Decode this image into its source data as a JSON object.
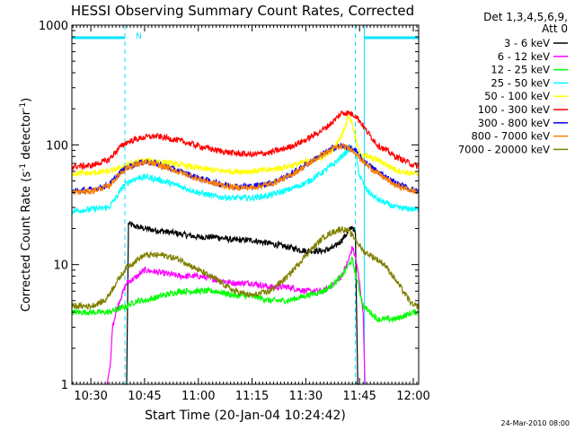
{
  "chart_data": {
    "type": "line",
    "title": "HESSI Observing Summary Count Rates, Corrected",
    "xlabel": "Start Time (20-Jan-04 10:24:42)",
    "ylabel_main": "Corrected Count Rate (s",
    "ylabel_sup1": "-1",
    "ylabel_mid": " detector",
    "ylabel_sup2": "-1",
    "ylabel_end": ")",
    "yscale": "log",
    "ylim": [
      1,
      1000
    ],
    "xlim": [
      "10:24:42",
      "12:01:30"
    ],
    "grid": false,
    "legend_placement": "right",
    "legend_header": [
      "Det 1,3,4,5,6,9,",
      "Att 0"
    ],
    "footer_date": "24-Mar-2010 08:00",
    "night_marker": "N",
    "x_ticks": [
      {
        "time": "10:30",
        "label": "10:30"
      },
      {
        "time": "10:45",
        "label": "10:45"
      },
      {
        "time": "11:00",
        "label": "11:00"
      },
      {
        "time": "11:15",
        "label": "11:15"
      },
      {
        "time": "11:30",
        "label": "11:30"
      },
      {
        "time": "11:45",
        "label": "11:45"
      },
      {
        "time": "12:00",
        "label": "12:00"
      }
    ],
    "y_ticks": [
      {
        "value": 1,
        "label": "1"
      },
      {
        "value": 10,
        "label": "10"
      },
      {
        "value": 100,
        "label": "100"
      },
      {
        "value": 1000,
        "label": "1000"
      }
    ],
    "night_intervals": [
      {
        "start": "10:24:42",
        "end": "10:39:30"
      },
      {
        "start": "11:46:20",
        "end": "12:01:30"
      }
    ],
    "saa_boundaries": [
      "10:24:42",
      "10:39:30",
      "11:43:50",
      "11:46:20",
      "12:01:30"
    ],
    "series": [
      {
        "name": "3 - 6 keV",
        "color": "#000000",
        "x": [
          "10:39:30",
          "10:40:00",
          "10:40:30",
          "10:42",
          "10:45",
          "10:50",
          "10:55",
          "11:00",
          "11:05",
          "11:10",
          "11:15",
          "11:20",
          "11:25",
          "11:30",
          "11:35",
          "11:38",
          "11:40",
          "11:42",
          "11:43",
          "11:43:50",
          "11:44:30",
          "11:45"
        ],
        "y": [
          1,
          1,
          22,
          21,
          20,
          19,
          18,
          17,
          17,
          16,
          16,
          15,
          14,
          13,
          13,
          14,
          16,
          19,
          21,
          18,
          1,
          1
        ]
      },
      {
        "name": "6 - 12 keV",
        "color": "#ff00ff",
        "x": [
          "10:34:30",
          "10:35:30",
          "10:36",
          "10:37",
          "10:38",
          "10:40",
          "10:43",
          "10:45",
          "10:50",
          "10:55",
          "11:00",
          "11:05",
          "11:10",
          "11:15",
          "11:20",
          "11:25",
          "11:30",
          "11:35",
          "11:38",
          "11:40",
          "11:42",
          "11:43",
          "11:44",
          "11:45",
          "11:46",
          "11:46:30"
        ],
        "y": [
          1,
          1.5,
          3,
          4,
          5,
          7,
          8,
          9,
          8.5,
          8,
          8,
          7.5,
          7,
          7,
          6.5,
          6.5,
          6,
          6,
          7,
          8,
          11,
          14,
          11,
          7,
          4,
          1
        ]
      },
      {
        "name": "12 - 25 keV",
        "color": "#00ff00",
        "x": [
          "10:24:42",
          "10:30",
          "10:35",
          "10:40",
          "10:43",
          "10:45",
          "10:50",
          "10:55",
          "11:00",
          "11:05",
          "11:10",
          "11:15",
          "11:20",
          "11:25",
          "11:30",
          "11:35",
          "11:38",
          "11:40",
          "11:42",
          "11:43",
          "11:44",
          "11:45",
          "11:46",
          "11:48",
          "11:50",
          "11:55",
          "12:00",
          "12:01:30"
        ],
        "y": [
          4,
          4,
          4,
          4.5,
          5,
          5,
          5.5,
          6,
          6,
          6,
          5.5,
          5.5,
          5,
          5,
          5.5,
          6,
          7,
          8,
          10,
          11,
          8,
          6,
          4.5,
          4,
          3.5,
          3.5,
          4,
          4
        ]
      },
      {
        "name": "25 - 50 keV",
        "color": "#00ffff",
        "x": [
          "10:24:42",
          "10:30",
          "10:35",
          "10:37",
          "10:39",
          "10:41",
          "10:43",
          "10:45",
          "10:48",
          "10:50",
          "10:55",
          "11:00",
          "11:05",
          "11:10",
          "11:15",
          "11:20",
          "11:25",
          "11:30",
          "11:35",
          "11:38",
          "11:40",
          "11:42",
          "11:43",
          "11:44",
          "11:45",
          "11:47",
          "11:50",
          "11:55",
          "12:00",
          "12:01:30"
        ],
        "y": [
          28,
          29,
          30,
          36,
          45,
          50,
          53,
          54,
          52,
          50,
          45,
          40,
          37,
          36,
          36,
          38,
          42,
          48,
          60,
          70,
          80,
          92,
          95,
          80,
          55,
          42,
          35,
          30,
          29,
          29
        ]
      },
      {
        "name": "50 - 100 keV",
        "color": "#ffff00",
        "x": [
          "10:24:42",
          "10:30",
          "10:35",
          "10:38",
          "10:40",
          "10:43",
          "10:45",
          "10:48",
          "10:50",
          "10:55",
          "11:00",
          "11:05",
          "11:10",
          "11:15",
          "11:20",
          "11:25",
          "11:30",
          "11:35",
          "11:38",
          "11:40",
          "11:42",
          "11:43",
          "11:44",
          "11:45",
          "11:47",
          "11:50",
          "11:55",
          "12:00",
          "12:01:30"
        ],
        "y": [
          58,
          58,
          60,
          64,
          68,
          72,
          74,
          73,
          72,
          68,
          64,
          61,
          60,
          60,
          62,
          66,
          72,
          80,
          95,
          120,
          175,
          150,
          110,
          85,
          80,
          75,
          62,
          57,
          57
        ]
      },
      {
        "name": "100 - 300 keV",
        "color": "#ff0000",
        "x": [
          "10:24:42",
          "10:30",
          "10:35",
          "10:38",
          "10:40",
          "10:43",
          "10:45",
          "10:48",
          "10:50",
          "10:55",
          "11:00",
          "11:05",
          "11:10",
          "11:15",
          "11:20",
          "11:25",
          "11:30",
          "11:35",
          "11:38",
          "11:40",
          "11:42",
          "11:43",
          "11:44",
          "11:45",
          "11:47",
          "11:50",
          "11:55",
          "12:00",
          "12:01:30"
        ],
        "y": [
          66,
          67,
          75,
          95,
          105,
          112,
          116,
          118,
          116,
          108,
          98,
          90,
          85,
          83,
          86,
          95,
          110,
          135,
          160,
          185,
          185,
          180,
          175,
          160,
          130,
          100,
          80,
          68,
          66
        ]
      },
      {
        "name": "300 - 800 keV",
        "color": "#0000ff",
        "x": [
          "10:24:42",
          "10:30",
          "10:35",
          "10:38",
          "10:40",
          "10:43",
          "10:45",
          "10:48",
          "10:50",
          "10:55",
          "11:00",
          "11:05",
          "11:10",
          "11:15",
          "11:20",
          "11:25",
          "11:30",
          "11:35",
          "11:38",
          "11:40",
          "11:42",
          "11:43",
          "11:44",
          "11:45",
          "11:47",
          "11:50",
          "11:55",
          "12:00",
          "12:01:30"
        ],
        "y": [
          41,
          42,
          46,
          58,
          65,
          70,
          72,
          70,
          67,
          60,
          53,
          48,
          45,
          45,
          48,
          55,
          68,
          85,
          95,
          98,
          95,
          92,
          88,
          80,
          70,
          60,
          48,
          42,
          41
        ]
      },
      {
        "name": "800 - 7000 keV",
        "color": "#ff8000",
        "x": [
          "10:24:42",
          "10:30",
          "10:35",
          "10:38",
          "10:40",
          "10:43",
          "10:45",
          "10:48",
          "10:50",
          "10:55",
          "11:00",
          "11:05",
          "11:10",
          "11:15",
          "11:20",
          "11:25",
          "11:30",
          "11:35",
          "11:38",
          "11:40",
          "11:42",
          "11:43",
          "11:44",
          "11:45",
          "11:47",
          "11:50",
          "11:55",
          "12:00",
          "12:01:30"
        ],
        "y": [
          40,
          41,
          45,
          57,
          64,
          69,
          71,
          69,
          66,
          59,
          52,
          47,
          44,
          44,
          47,
          54,
          67,
          84,
          94,
          97,
          94,
          91,
          86,
          78,
          68,
          58,
          46,
          41,
          40
        ]
      },
      {
        "name": "7000 - 20000 keV",
        "color": "#808000",
        "x": [
          "10:24:42",
          "10:30",
          "10:34",
          "10:37",
          "10:40",
          "10:43",
          "10:45",
          "10:50",
          "10:55",
          "11:00",
          "11:05",
          "11:10",
          "11:15",
          "11:20",
          "11:25",
          "11:30",
          "11:35",
          "11:38",
          "11:40",
          "11:42",
          "11:44",
          "11:46",
          "11:48",
          "11:50",
          "11:52",
          "11:55",
          "11:58",
          "12:00",
          "12:01:30"
        ],
        "y": [
          4.5,
          4.5,
          5,
          7,
          9.5,
          11,
          12,
          12,
          11,
          9,
          7.5,
          6,
          5.5,
          6,
          8,
          12,
          17,
          19,
          20,
          19,
          16,
          13,
          12,
          11,
          10,
          7.5,
          5.5,
          4.5,
          4.5
        ]
      }
    ]
  }
}
